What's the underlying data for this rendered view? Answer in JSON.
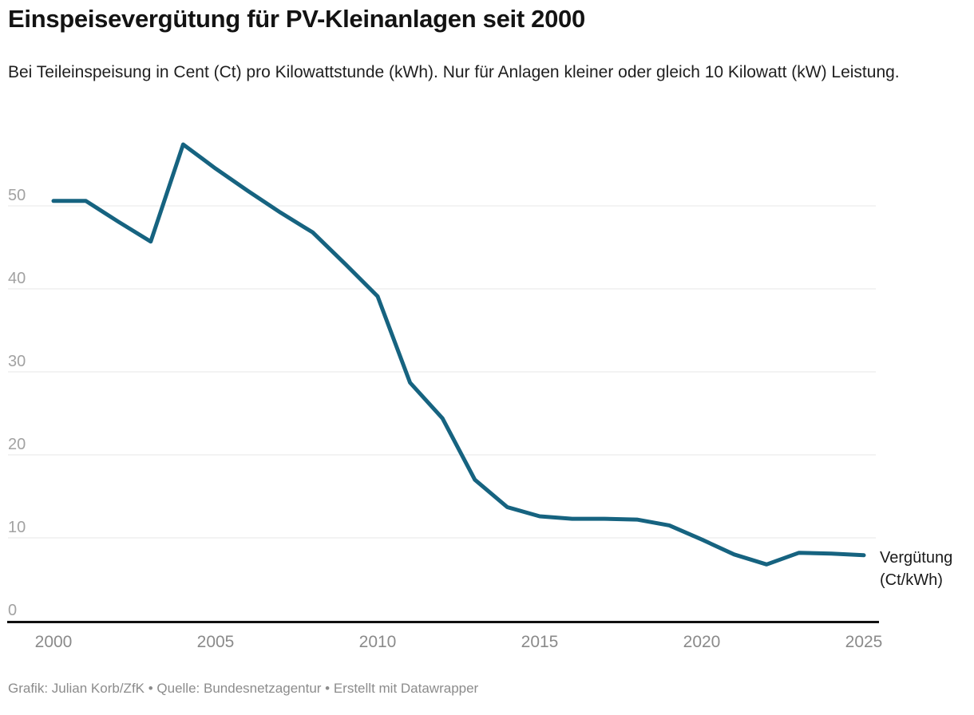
{
  "header": {
    "title": "Einspeisevergütung für PV-Kleinanlagen seit 2000",
    "subtitle": "Bei Teileinspeisung in Cent (Ct) pro Kilowattstunde (kWh). Nur für Anlagen kleiner oder gleich 10 Kilowatt (kW) Leistung."
  },
  "chart_data": {
    "type": "line",
    "title": "Einspeisevergütung für PV-Kleinanlagen seit 2000",
    "x": [
      2000,
      2001,
      2002,
      2003,
      2004,
      2005,
      2006,
      2007,
      2008,
      2009,
      2010,
      2011,
      2012,
      2013,
      2014,
      2015,
      2016,
      2017,
      2018,
      2019,
      2020,
      2021,
      2022,
      2023,
      2024,
      2025
    ],
    "series": [
      {
        "name": "Vergütung (Ct/kWh)",
        "values": [
          50.6,
          50.6,
          48.1,
          45.7,
          57.4,
          54.5,
          51.8,
          49.2,
          46.8,
          43.0,
          39.1,
          28.7,
          24.4,
          17.0,
          13.7,
          12.6,
          12.3,
          12.3,
          12.2,
          11.5,
          9.8,
          8.0,
          6.8,
          8.2,
          8.1,
          7.9
        ]
      }
    ],
    "line_label_lines": [
      "Vergütung",
      "(Ct/kWh)"
    ],
    "xlabel": "",
    "ylabel": "",
    "x_ticks": [
      2000,
      2005,
      2010,
      2015,
      2020,
      2025
    ],
    "y_ticks": [
      0,
      10,
      20,
      30,
      40,
      50
    ],
    "xlim": [
      2000,
      2025
    ],
    "ylim": [
      0,
      59
    ],
    "grid": "horizontal",
    "legend_position": "line-end-right",
    "line_color": "#166380",
    "grid_color": "#e7e7e7",
    "axis_color": "#111111",
    "y_tick_color": "#a2a2a2",
    "x_tick_color": "#8a8a8a"
  },
  "footer": {
    "credit": "Grafik: Julian Korb/ZfK • Quelle: Bundesnetzagentur • Erstellt mit Datawrapper"
  }
}
